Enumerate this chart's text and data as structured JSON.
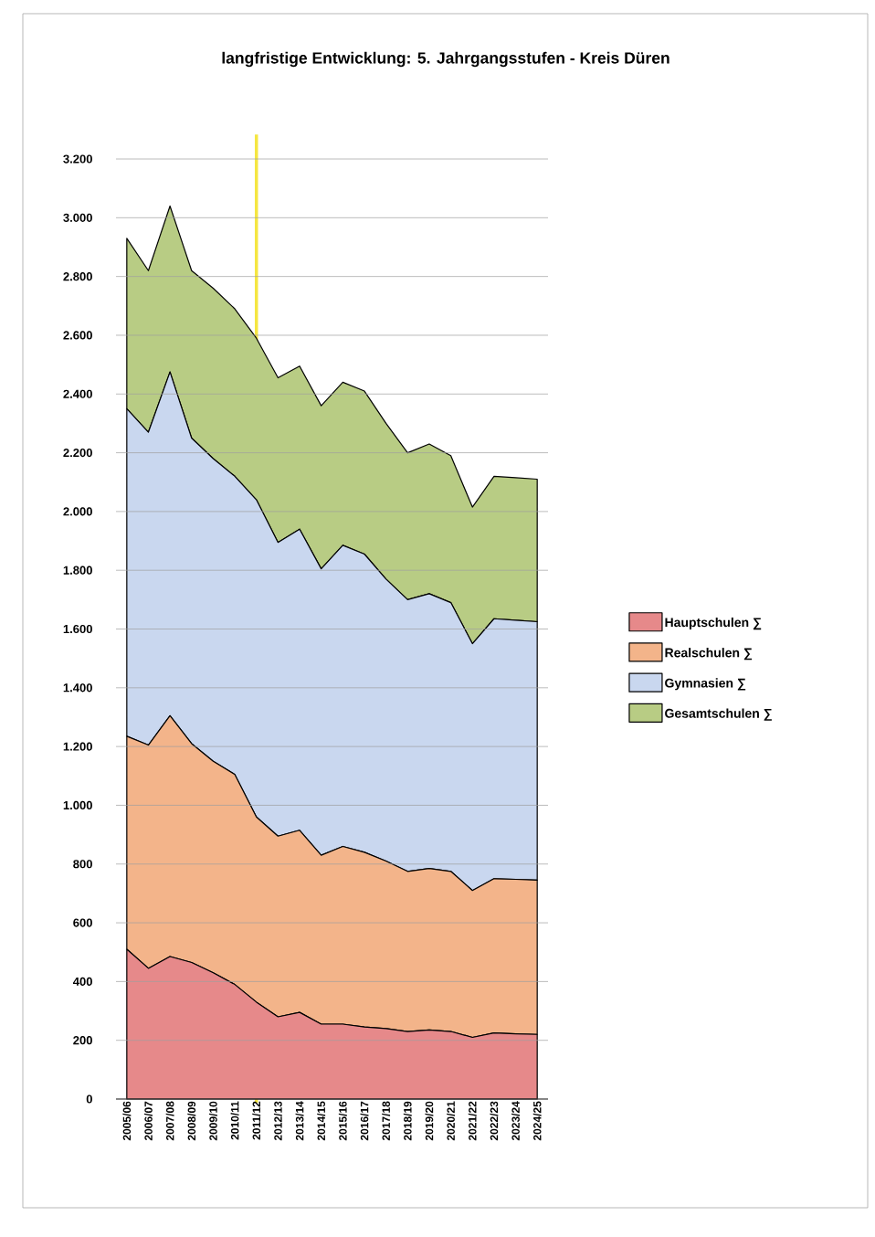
{
  "chart_data": {
    "type": "area",
    "stacked": true,
    "title": "langfristige Entwicklung: 5. Jahrgangsstufen - Kreis Düren",
    "categories": [
      "2005/06",
      "2006/07",
      "2007/08",
      "2008/09",
      "2009/10",
      "2010/11",
      "2011/12",
      "2012/13",
      "2013/14",
      "2014/15",
      "2015/16",
      "2016/17",
      "2017/18",
      "2018/19",
      "2019/20",
      "2020/21",
      "2021/22",
      "2022/23",
      "2023/24",
      "2024/25"
    ],
    "series": [
      {
        "name": "Hauptschulen ∑",
        "color": "#e6898a",
        "values": [
          510,
          445,
          485,
          465,
          430,
          390,
          330,
          280,
          295,
          255,
          255,
          245,
          240,
          230,
          235,
          230,
          210,
          225,
          222,
          220
        ]
      },
      {
        "name": "Realschulen ∑",
        "color": "#f3b48a",
        "values": [
          725,
          760,
          820,
          745,
          720,
          715,
          630,
          615,
          620,
          575,
          605,
          595,
          570,
          545,
          550,
          545,
          500,
          525,
          526,
          525
        ]
      },
      {
        "name": "Gymnasien ∑",
        "color": "#c9d7ef",
        "values": [
          1115,
          1065,
          1170,
          1040,
          1030,
          1015,
          1080,
          1000,
          1025,
          975,
          1025,
          1015,
          960,
          925,
          935,
          915,
          840,
          885,
          882,
          880
        ]
      },
      {
        "name": "Gesamtschulen ∑",
        "color": "#b8cc84",
        "values": [
          580,
          550,
          565,
          570,
          580,
          570,
          550,
          560,
          555,
          555,
          555,
          555,
          530,
          500,
          510,
          500,
          465,
          485,
          485,
          485
        ]
      }
    ],
    "ylim": [
      0,
      3200
    ],
    "yticks": [
      0,
      200,
      400,
      600,
      800,
      {
        "value": 1000,
        "label": "1.000"
      },
      {
        "value": 1200,
        "label": "1.200"
      },
      {
        "value": 1400,
        "label": "1.400"
      },
      {
        "value": 1600,
        "label": "1.600"
      },
      {
        "value": 1800,
        "label": "1.800"
      },
      {
        "value": 2000,
        "label": "2.000"
      },
      {
        "value": 2200,
        "label": "2.200"
      },
      {
        "value": 2400,
        "label": "2.400"
      },
      {
        "value": 2600,
        "label": "2.600"
      },
      {
        "value": 2800,
        "label": "2.800"
      },
      {
        "value": 3000,
        "label": "3.000"
      },
      {
        "value": 3200,
        "label": "3.200"
      }
    ],
    "grid": "y",
    "legend": "right",
    "ref_lines": [
      {
        "axis": "x",
        "value": "2011/12",
        "color": "#f5e642"
      }
    ]
  }
}
